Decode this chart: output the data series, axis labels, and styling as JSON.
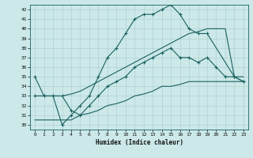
{
  "xlabel": "Humidex (Indice chaleur)",
  "xlim": [
    -0.5,
    23.5
  ],
  "ylim": [
    29.5,
    42.5
  ],
  "xticks": [
    0,
    1,
    2,
    3,
    4,
    5,
    6,
    7,
    8,
    9,
    10,
    11,
    12,
    13,
    14,
    15,
    16,
    17,
    18,
    19,
    20,
    21,
    22,
    23
  ],
  "yticks": [
    30,
    31,
    32,
    33,
    34,
    35,
    36,
    37,
    38,
    39,
    40,
    41,
    42
  ],
  "bg_color": "#cce8e8",
  "line_color": "#1a6060",
  "grid_color": "#aacccc",
  "line1_x": [
    0,
    1,
    2,
    3,
    4,
    5,
    6,
    7,
    8,
    9,
    10,
    11,
    12,
    13,
    14,
    15,
    16,
    17,
    18,
    19,
    22,
    23
  ],
  "line1_y": [
    35,
    33,
    33,
    30,
    31,
    32,
    33,
    35,
    37,
    38,
    39.5,
    41,
    41.5,
    41.5,
    42,
    42.5,
    41.5,
    40,
    39.5,
    39.5,
    35,
    34.5
  ],
  "line2_x": [
    0,
    1,
    2,
    3,
    4,
    5,
    6,
    7,
    8,
    9,
    10,
    11,
    12,
    13,
    14,
    15,
    16,
    17,
    18,
    19,
    20,
    21,
    22,
    23
  ],
  "line2_y": [
    33,
    33,
    33,
    33,
    33.2,
    33.5,
    34,
    34.5,
    35,
    35.5,
    36,
    36.5,
    37,
    37.5,
    38,
    38.5,
    39,
    39.5,
    39.7,
    40,
    40,
    40,
    35,
    35
  ],
  "line3_x": [
    0,
    1,
    2,
    3,
    4,
    5,
    6,
    7,
    8,
    9,
    10,
    11,
    12,
    13,
    14,
    15,
    16,
    17,
    18,
    19,
    20,
    21,
    22,
    23
  ],
  "line3_y": [
    33,
    33,
    33,
    33,
    31.5,
    31,
    32,
    33,
    34,
    34.5,
    35,
    36,
    36.5,
    37,
    37.5,
    38,
    37,
    37,
    36.5,
    37,
    36,
    35,
    35,
    34.5
  ],
  "line4_x": [
    0,
    1,
    2,
    3,
    4,
    5,
    6,
    7,
    8,
    9,
    10,
    11,
    12,
    13,
    14,
    15,
    16,
    17,
    18,
    19,
    20,
    21,
    22,
    23
  ],
  "line4_y": [
    30.5,
    30.5,
    30.5,
    30.5,
    30.5,
    31,
    31.2,
    31.5,
    32,
    32.2,
    32.5,
    33,
    33.2,
    33.5,
    34,
    34,
    34.2,
    34.5,
    34.5,
    34.5,
    34.5,
    34.5,
    34.5,
    34.5
  ]
}
